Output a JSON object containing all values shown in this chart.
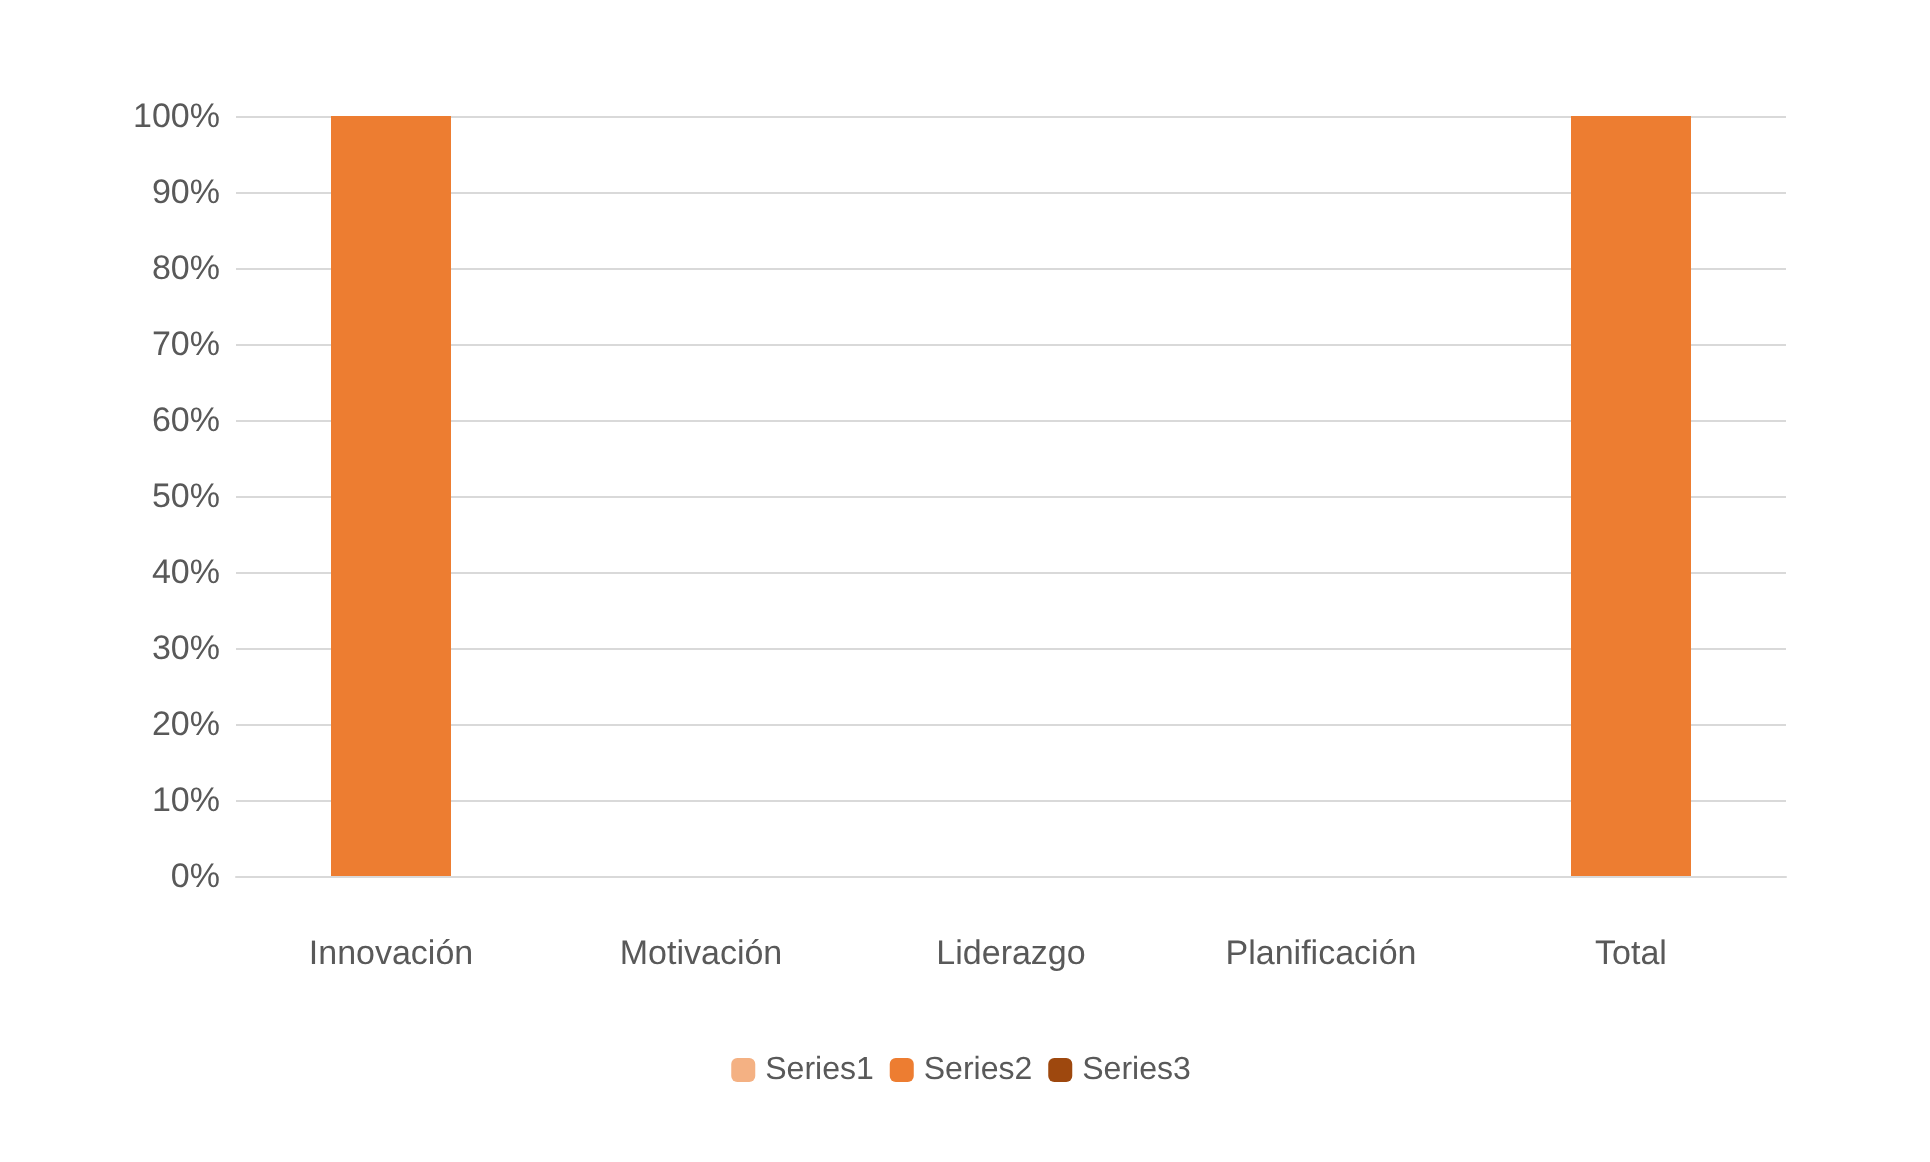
{
  "chart_data": {
    "type": "bar",
    "categories": [
      "Innovación",
      "Motivación",
      "Liderazgo",
      "Planificación",
      "Total"
    ],
    "series": [
      {
        "name": "Series1",
        "color": "#f4b183",
        "values": [
          null,
          null,
          null,
          null,
          null
        ]
      },
      {
        "name": "Series2",
        "color": "#ed7d31",
        "values": [
          100,
          0,
          0,
          0,
          100
        ]
      },
      {
        "name": "Series3",
        "color": "#9e480e",
        "values": [
          null,
          null,
          null,
          null,
          null
        ]
      }
    ],
    "ylim": [
      0,
      100
    ],
    "yticks": [
      {
        "value": 0,
        "label": "0%"
      },
      {
        "value": 10,
        "label": "10%"
      },
      {
        "value": 20,
        "label": "20%"
      },
      {
        "value": 30,
        "label": "30%"
      },
      {
        "value": 40,
        "label": "40%"
      },
      {
        "value": 50,
        "label": "50%"
      },
      {
        "value": 60,
        "label": "60%"
      },
      {
        "value": 70,
        "label": "70%"
      },
      {
        "value": 80,
        "label": "80%"
      },
      {
        "value": 90,
        "label": "90%"
      },
      {
        "value": 100,
        "label": "100%"
      }
    ],
    "grid": "y",
    "legend": "bottom"
  }
}
